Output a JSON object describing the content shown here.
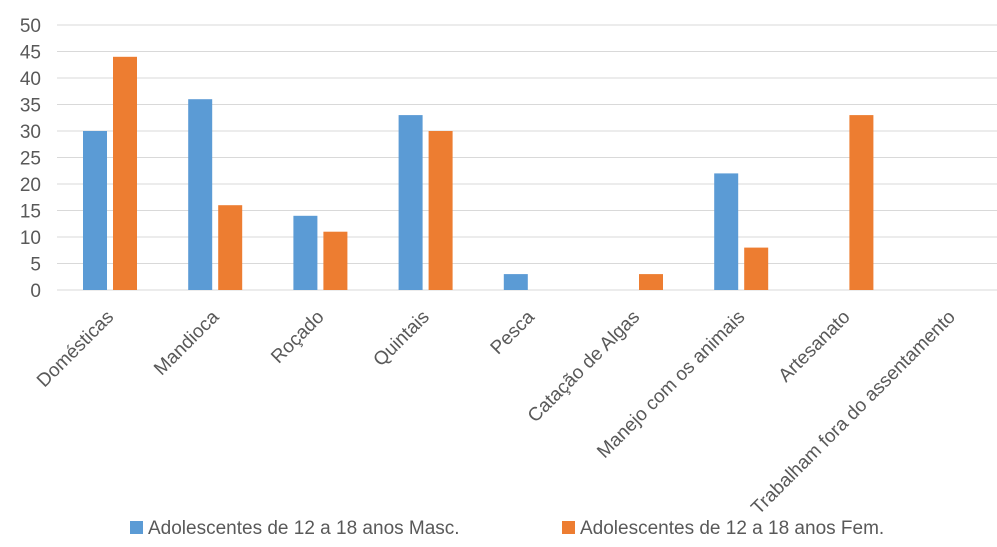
{
  "chart_data": {
    "type": "bar",
    "categories": [
      "Domésticas",
      "Mandioca",
      "Roçado",
      "Quintais",
      "Pesca",
      "Catação de Algas",
      "Manejo com os animais",
      "Artesanato",
      "Trabalham fora do assentamento"
    ],
    "series": [
      {
        "name": "Adolescentes de 12 a 18 anos Masc.",
        "color": "#5B9BD5",
        "values": [
          30,
          36,
          14,
          33,
          3,
          0,
          22,
          0,
          0
        ]
      },
      {
        "name": "Adolescentes de 12 a 18 anos Fem.",
        "color": "#ED7D31",
        "values": [
          44,
          16,
          11,
          30,
          0,
          3,
          8,
          33,
          0
        ]
      }
    ],
    "yticks": [
      "0",
      "5",
      "10",
      "15",
      "20",
      "25",
      "30",
      "35",
      "40",
      "45",
      "50"
    ],
    "ylim": [
      0,
      50
    ],
    "grid": true,
    "legend_position": "bottom"
  }
}
